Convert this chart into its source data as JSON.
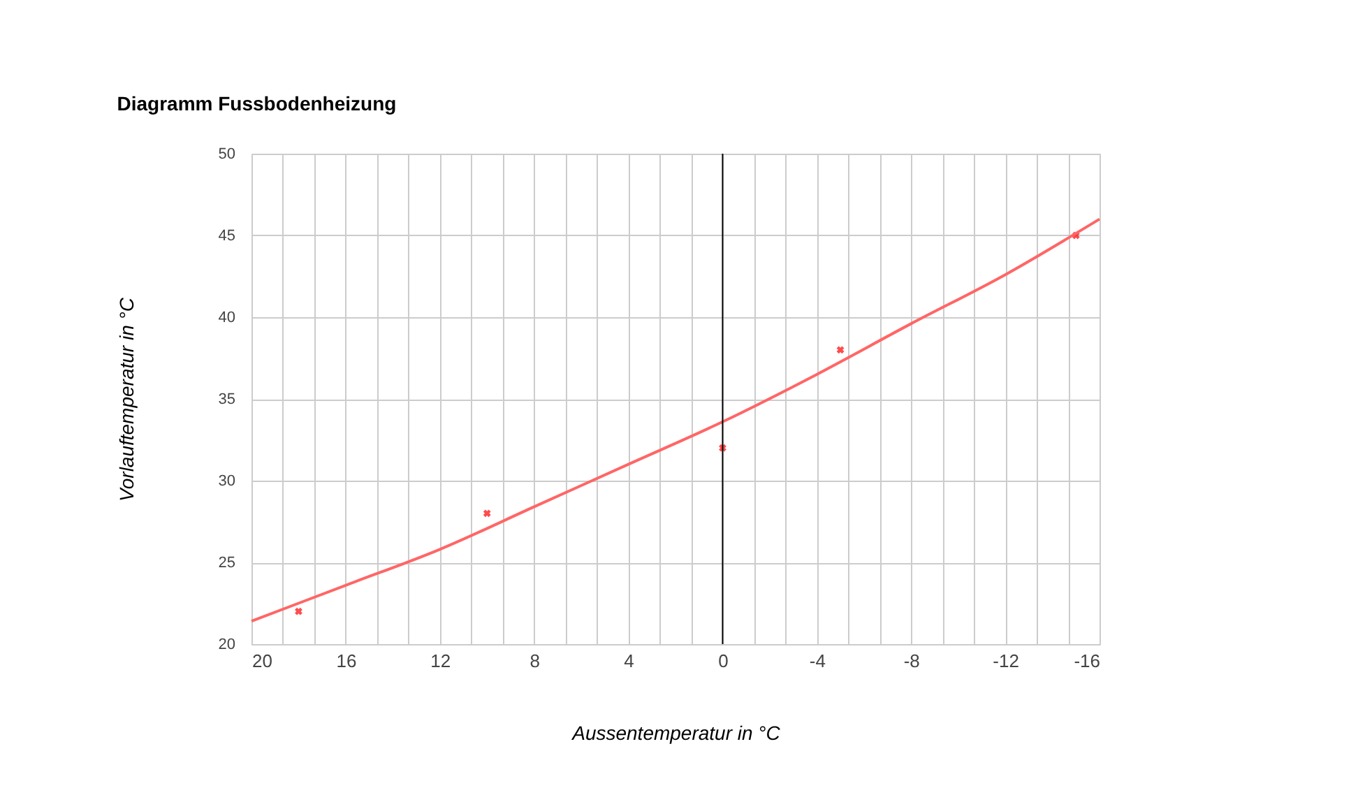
{
  "chart_data": {
    "type": "scatter",
    "title": "Diagramm Fussbodenheizung",
    "xlabel": "Aussentemperatur in °C",
    "ylabel": "Vorlauftemperatur in °C",
    "xlim": [
      20,
      -16
    ],
    "ylim": [
      20,
      50
    ],
    "xticks": [
      20,
      {
        "value": 18.667,
        "label": null
      },
      {
        "value": 17.333,
        "label": null
      },
      16,
      {
        "value": 14.667,
        "label": null
      },
      {
        "value": 13.333,
        "label": null
      },
      12,
      {
        "value": 10.667,
        "label": null
      },
      {
        "value": 9.333,
        "label": null
      },
      8,
      {
        "value": 6.667,
        "label": null
      },
      {
        "value": 5.333,
        "label": null
      },
      4,
      {
        "value": 2.667,
        "label": null
      },
      {
        "value": 1.333,
        "label": null
      },
      0,
      {
        "value": -1.333,
        "label": null
      },
      {
        "value": -2.667,
        "label": null
      },
      -4,
      {
        "value": -5.333,
        "label": null
      },
      {
        "value": -6.667,
        "label": null
      },
      -8,
      {
        "value": -9.333,
        "label": null
      },
      {
        "value": -10.667,
        "label": null
      },
      -12,
      {
        "value": -13.333,
        "label": null
      },
      {
        "value": -14.667,
        "label": null
      },
      -16
    ],
    "yticks": [
      20,
      25,
      30,
      35,
      40,
      45,
      50
    ],
    "grid": true,
    "marker": "cross",
    "ref_lines": [
      {
        "axis": "x",
        "value": 0,
        "color": "#000000"
      }
    ],
    "series": [
      {
        "color": "#ff0000",
        "x": [
          18,
          10,
          0,
          -5,
          -15
        ],
        "values": [
          22,
          28,
          32,
          38,
          45
        ]
      },
      {
        "type": "line",
        "color": "#ff6666",
        "marker": "none",
        "x": [
          20,
          16,
          12,
          8,
          4,
          0,
          -4,
          -8,
          -12,
          -16
        ],
        "values": [
          21.4,
          23.6,
          25.8,
          28.4,
          31.0,
          33.6,
          36.5,
          39.6,
          42.6,
          46.0
        ]
      }
    ]
  }
}
